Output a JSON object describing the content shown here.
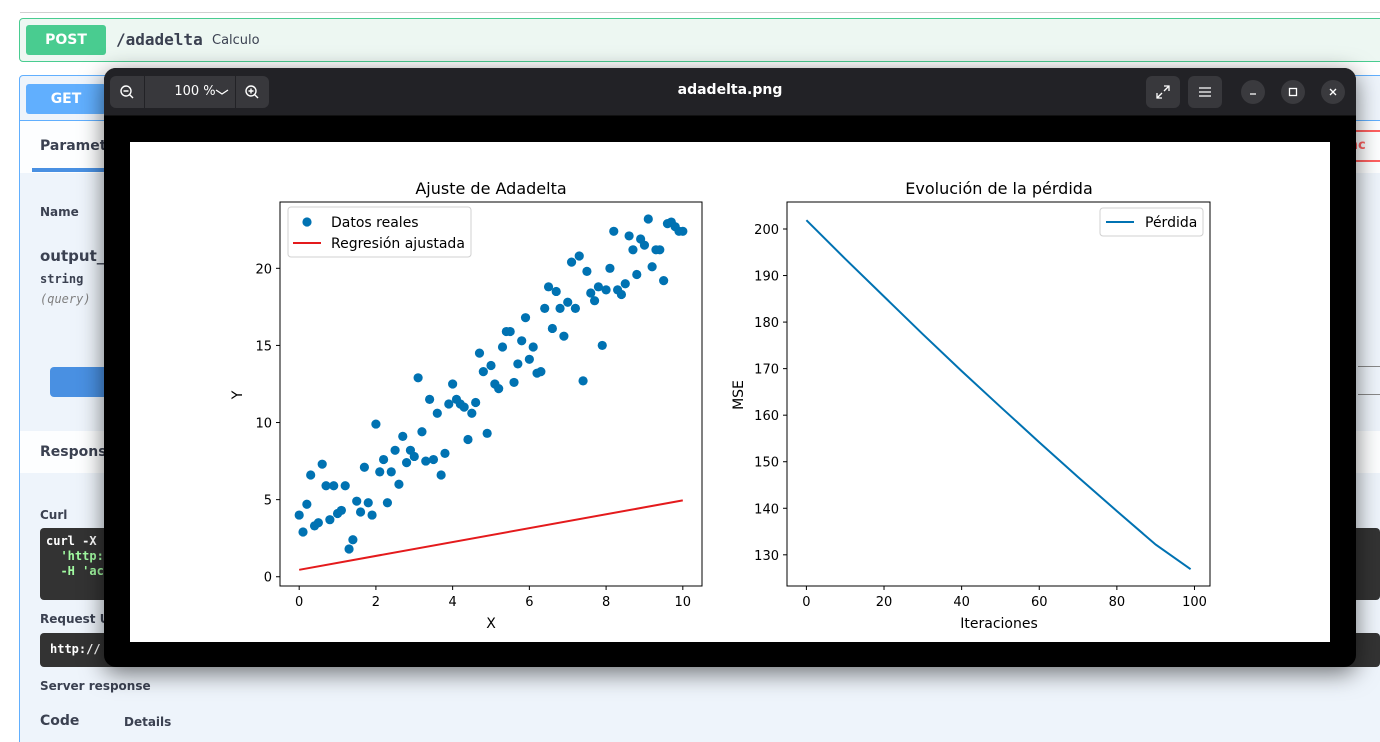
{
  "swagger": {
    "post_block": {
      "method": "POST",
      "path": "/adadelta",
      "summary": "Calculo"
    },
    "get_block": {
      "method": "GET",
      "parameters_tab": "Paramete",
      "cancel_label": "anc",
      "name_header": "Name",
      "param_name": "output_",
      "param_type": "string",
      "param_in": "(query)",
      "responses_label": "Response",
      "curl_label": "Curl",
      "curl_lines": [
        "curl -X",
        "  'http:",
        "  -H 'ac"
      ],
      "request_url_label": "Request UI",
      "request_url_value": "http://",
      "server_response_label": "Server response",
      "code_label": "Code",
      "details_label": "Details"
    }
  },
  "viewer": {
    "title": "adadelta.png",
    "zoom_level": "100 %",
    "icons": [
      "zoom-out-icon",
      "chevron-down-icon",
      "zoom-in-icon",
      "fullscreen-icon",
      "menu-icon",
      "minimize-icon",
      "maximize-icon",
      "close-icon"
    ]
  },
  "chart_data": [
    {
      "type": "scatter",
      "title": "Ajuste de Adadelta",
      "xlabel": "X",
      "ylabel": "Y",
      "xlim": [
        -0.5,
        10.5
      ],
      "ylim": [
        -0.6,
        24.3
      ],
      "xticks": [
        0,
        2,
        4,
        6,
        8,
        10
      ],
      "yticks": [
        0,
        5,
        10,
        15,
        20
      ],
      "legend_position": "upper-left",
      "color_points": "#0072b2",
      "color_line": "#e41a1c",
      "series": [
        {
          "name": "Datos reales",
          "kind": "scatter",
          "x": [
            0.0,
            0.1,
            0.2,
            0.3,
            0.4,
            0.5,
            0.6,
            0.7,
            0.8,
            0.9,
            1.0,
            1.1,
            1.2,
            1.3,
            1.4,
            1.5,
            1.6,
            1.7,
            1.8,
            1.9,
            2.0,
            2.1,
            2.2,
            2.3,
            2.4,
            2.5,
            2.6,
            2.7,
            2.8,
            2.9,
            3.0,
            3.1,
            3.2,
            3.3,
            3.4,
            3.5,
            3.6,
            3.7,
            3.8,
            3.9,
            4.0,
            4.1,
            4.2,
            4.3,
            4.4,
            4.5,
            4.6,
            4.7,
            4.8,
            4.9,
            5.0,
            5.1,
            5.2,
            5.3,
            5.4,
            5.5,
            5.6,
            5.7,
            5.8,
            5.9,
            6.0,
            6.1,
            6.2,
            6.3,
            6.4,
            6.5,
            6.6,
            6.7,
            6.8,
            6.9,
            7.0,
            7.1,
            7.2,
            7.3,
            7.4,
            7.5,
            7.6,
            7.7,
            7.8,
            7.9,
            8.0,
            8.1,
            8.2,
            8.3,
            8.4,
            8.5,
            8.6,
            8.7,
            8.8,
            8.9,
            9.0,
            9.1,
            9.2,
            9.3,
            9.4,
            9.5,
            9.6,
            9.7,
            9.8,
            9.9,
            10.0
          ],
          "y": [
            4.0,
            2.9,
            4.7,
            6.6,
            3.3,
            3.5,
            7.3,
            5.9,
            3.7,
            5.9,
            4.1,
            4.3,
            5.9,
            1.8,
            2.4,
            4.9,
            4.2,
            7.1,
            4.8,
            4.0,
            9.9,
            6.8,
            7.6,
            4.8,
            6.8,
            8.2,
            6.0,
            9.1,
            7.4,
            8.2,
            7.8,
            12.9,
            9.4,
            7.5,
            11.5,
            7.6,
            10.6,
            6.6,
            8.0,
            11.2,
            12.5,
            11.5,
            11.2,
            11.0,
            8.9,
            10.6,
            11.3,
            14.5,
            13.3,
            9.3,
            13.7,
            12.5,
            12.2,
            14.9,
            15.9,
            15.9,
            12.6,
            13.8,
            15.3,
            16.8,
            14.1,
            14.9,
            13.2,
            13.3,
            17.4,
            18.8,
            16.1,
            18.5,
            17.4,
            15.6,
            17.8,
            20.4,
            17.4,
            20.8,
            12.7,
            19.8,
            18.4,
            17.9,
            18.8,
            15.0,
            18.6,
            20.0,
            22.4,
            18.6,
            18.3,
            19.0,
            22.1,
            21.2,
            19.6,
            21.9,
            21.5,
            23.2,
            20.1,
            21.2,
            21.2,
            19.2,
            22.9,
            23.0,
            22.7,
            22.4,
            22.4
          ]
        },
        {
          "name": "Regresión ajustada",
          "kind": "line",
          "x": [
            0,
            10
          ],
          "y": [
            0.45,
            4.95
          ]
        }
      ]
    },
    {
      "type": "line",
      "title": "Evolución de la pérdida",
      "xlabel": "Iteraciones",
      "ylabel": "MSE",
      "xlim": [
        -5,
        104
      ],
      "ylim": [
        123.3,
        205.8
      ],
      "xticks": [
        0,
        20,
        40,
        60,
        80,
        100
      ],
      "yticks": [
        130,
        140,
        150,
        160,
        170,
        180,
        190,
        200
      ],
      "legend_position": "upper-right",
      "color_line": "#0072b2",
      "series": [
        {
          "name": "Pérdida",
          "x": [
            0,
            10,
            20,
            30,
            40,
            50,
            60,
            70,
            80,
            90,
            99
          ],
          "y": [
            201.9,
            193.6,
            185.5,
            177.4,
            169.5,
            161.8,
            154.2,
            146.7,
            139.4,
            132.2,
            126.9
          ]
        }
      ]
    }
  ]
}
